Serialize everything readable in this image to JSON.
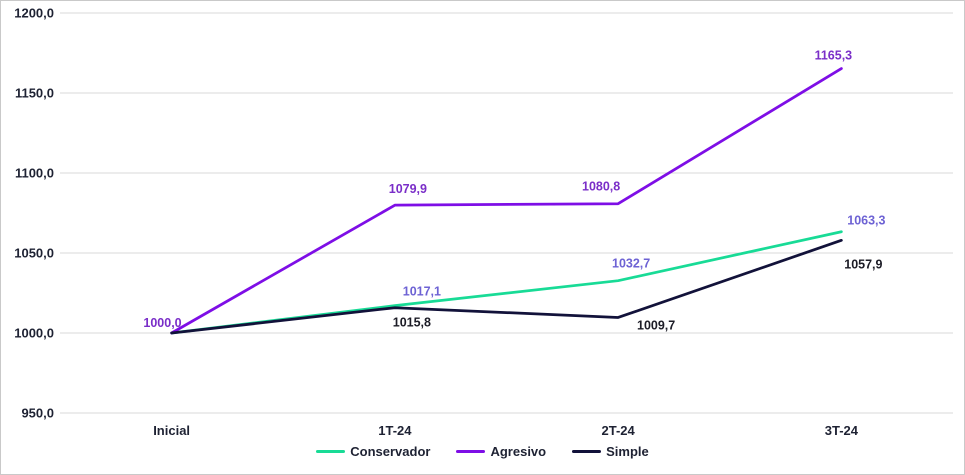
{
  "chart_data": {
    "type": "line",
    "title": "",
    "xlabel": "",
    "ylabel": "",
    "categories": [
      "Inicial",
      "1T-24",
      "2T-24",
      "3T-24"
    ],
    "series": [
      {
        "name": "Conservador",
        "color": "#18db96",
        "label_color": "#6d62d4",
        "values": [
          1000.0,
          1017.1,
          1032.7,
          1063.3
        ],
        "point_labels": [
          null,
          "1017,1",
          "1032,7",
          "1063,3"
        ]
      },
      {
        "name": "Agresivo",
        "color": "#7e0ee6",
        "label_color": "#7a2ec8",
        "values": [
          1000.0,
          1079.9,
          1080.8,
          1165.3
        ],
        "point_labels": [
          "1000,0",
          "1079,9",
          "1080,8",
          "1165,3"
        ]
      },
      {
        "name": "Simple",
        "color": "#12123a",
        "label_color": "#1c1c26",
        "values": [
          1000.0,
          1015.8,
          1009.7,
          1057.9
        ],
        "point_labels": [
          null,
          "1015,8",
          "1009,7",
          "1057,9"
        ]
      }
    ],
    "ylim": [
      950,
      1200
    ],
    "ytick_step": 50,
    "ytick_labels": [
      "950,0",
      "1000,0",
      "1050,0",
      "1100,0",
      "1150,0",
      "1200,0"
    ],
    "grid": true,
    "legend_position": "bottom",
    "colors": {
      "gridline": "#d9d9d9",
      "axis_text": "#1e2233",
      "background": "#ffffff",
      "frame_border": "#c9c9c9"
    }
  }
}
